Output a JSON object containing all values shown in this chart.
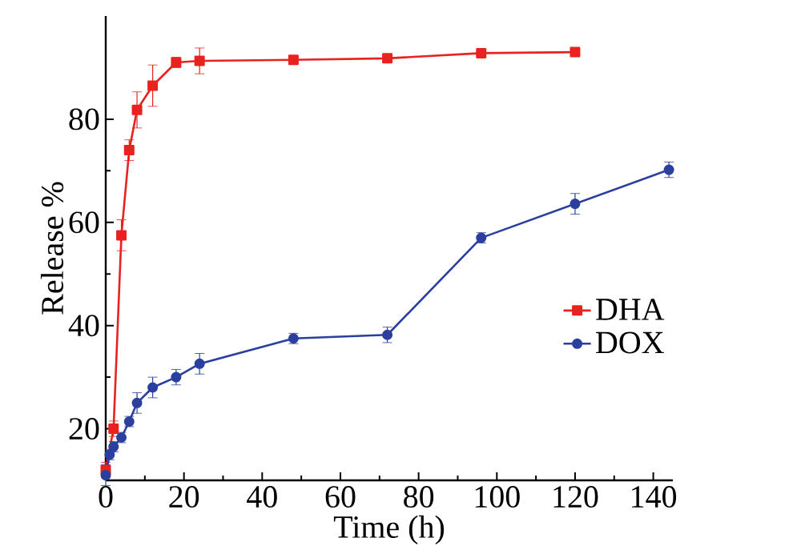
{
  "chart_data": {
    "type": "line",
    "xlabel": "Time (h)",
    "ylabel": "Release %",
    "xlim": [
      0,
      145
    ],
    "ylim": [
      10,
      100
    ],
    "xticks": [
      0,
      20,
      40,
      60,
      80,
      100,
      120,
      140
    ],
    "yticks": [
      20,
      40,
      60,
      80
    ],
    "grid": false,
    "legend": "right",
    "line_style": "solid",
    "series": [
      {
        "name": "DHA",
        "color": "#e8231f",
        "marker": "square",
        "x": [
          0,
          2,
          4,
          6,
          8,
          12,
          18,
          24,
          48,
          72,
          96,
          120
        ],
        "values": [
          12,
          20,
          57.5,
          74,
          81.8,
          86.5,
          91,
          91.3,
          91.5,
          91.8,
          92.8,
          93
        ],
        "errors": [
          1.5,
          1.5,
          3,
          2,
          3.5,
          4,
          1,
          2.5,
          0.5,
          0.5,
          0.5,
          0.5
        ]
      },
      {
        "name": "DOX",
        "color": "#2b3f9e",
        "marker": "circle",
        "x": [
          0,
          1,
          2,
          4,
          6,
          8,
          12,
          18,
          24,
          48,
          72,
          96,
          120,
          144
        ],
        "values": [
          11,
          15,
          16.5,
          18.3,
          21.4,
          25,
          28,
          30,
          32.6,
          37.5,
          38.2,
          57,
          63.6,
          70.2
        ],
        "errors": [
          2,
          1,
          1,
          1,
          1,
          2,
          2,
          1.5,
          2,
          1,
          1.5,
          1,
          2,
          1.5
        ]
      }
    ]
  }
}
